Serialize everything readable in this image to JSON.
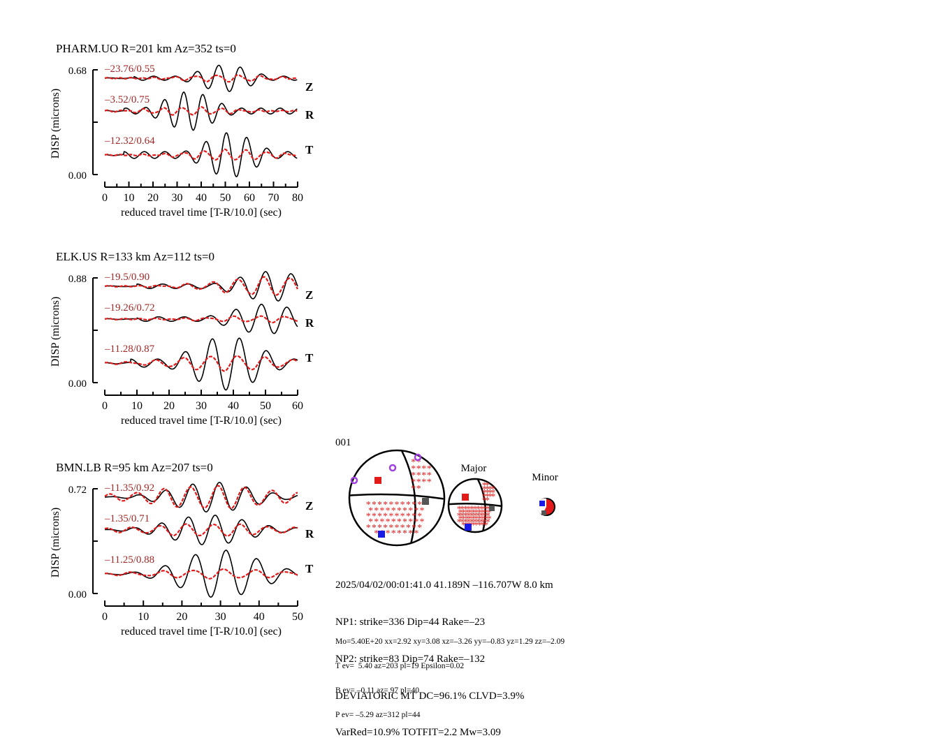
{
  "stations": [
    {
      "title": "PHARM.UO R=201 km Az=352 ts=0",
      "ylabel": "DISP (microns)",
      "ymax_label": "0.68",
      "ymin_label": "0.00",
      "xlabel": "reduced travel time [T-R/10.0] (sec)",
      "xticks": [
        "0",
        "10",
        "20",
        "30",
        "40",
        "50",
        "60",
        "70",
        "80"
      ],
      "xmax": 80,
      "components": [
        {
          "name": "Z",
          "fit": "–23.76/0.55",
          "obs_amp": 0.09,
          "syn_amp": 0.022,
          "obs_period": 9.0,
          "syn_period": 9.0,
          "onset": 12,
          "peak": 50
        },
        {
          "name": "R",
          "fit": "–3.52/0.75",
          "obs_amp": 0.13,
          "syn_amp": 0.025,
          "obs_period": 8.0,
          "syn_period": 8.0,
          "onset": 8,
          "peak": 35
        },
        {
          "name": "T",
          "fit": "–12.32/0.64",
          "obs_amp": 0.15,
          "syn_amp": 0.035,
          "obs_period": 8.5,
          "syn_period": 8.5,
          "onset": 8,
          "peak": 52
        }
      ]
    },
    {
      "title": "ELK.US R=133 km Az=112 ts=0",
      "ylabel": "DISP (microns)",
      "ymax_label": "0.88",
      "ymin_label": "0.00",
      "xlabel": "reduced travel time [T-R/10.0] (sec)",
      "xticks": [
        "0",
        "10",
        "20",
        "30",
        "40",
        "50",
        "60"
      ],
      "xmax": 60,
      "components": [
        {
          "name": "Z",
          "fit": "–19.5/0.90",
          "obs_amp": 0.1,
          "syn_amp": 0.06,
          "obs_period": 8.0,
          "syn_period": 8.0,
          "onset": 10,
          "peak": 52
        },
        {
          "name": "R",
          "fit": "–19.26/0.72",
          "obs_amp": 0.1,
          "syn_amp": 0.02,
          "obs_period": 8.0,
          "syn_period": 8.0,
          "onset": 10,
          "peak": 50
        },
        {
          "name": "T",
          "fit": "–11.28/0.87",
          "obs_amp": 0.18,
          "syn_amp": 0.05,
          "obs_period": 8.5,
          "syn_period": 8.5,
          "onset": 8,
          "peak": 38
        }
      ]
    },
    {
      "title": "BMN.LB R=95 km Az=207 ts=0",
      "ylabel": "DISP (microns)",
      "ymax_label": "0.72",
      "ymin_label": "0.00",
      "xlabel": "reduced travel time [T-R/10.0] (sec)",
      "xticks": [
        "0",
        "10",
        "20",
        "30",
        "40",
        "50"
      ],
      "xmax": 50,
      "components": [
        {
          "name": "Z",
          "fit": "–11.35/0.92",
          "obs_amp": 0.1,
          "syn_amp": 0.075,
          "obs_period": 7.0,
          "syn_period": 7.0,
          "onset": 8,
          "peak": 28
        },
        {
          "name": "R",
          "fit": "–1.35/0.71",
          "obs_amp": 0.1,
          "syn_amp": 0.04,
          "obs_period": 7.0,
          "syn_period": 7.0,
          "onset": 6,
          "peak": 27
        },
        {
          "name": "T",
          "fit": "–11.25/0.88",
          "obs_amp": 0.16,
          "syn_amp": 0.03,
          "obs_period": 8.0,
          "syn_period": 8.0,
          "onset": 10,
          "peak": 30
        }
      ]
    }
  ],
  "chart_data": [
    {
      "type": "line",
      "title": "PHARM.UO R=201 km Az=352 ts=0",
      "xlabel": "reduced travel time [T-R/10.0] (sec)",
      "ylabel": "DISP (microns)",
      "xlim": [
        0,
        80
      ],
      "ylim": [
        0.0,
        0.68
      ],
      "series": [
        {
          "name": "Z",
          "values": "–23.76/0.55"
        },
        {
          "name": "R",
          "values": "–3.52/0.75"
        },
        {
          "name": "T",
          "values": "–12.32/0.64"
        }
      ]
    },
    {
      "type": "line",
      "title": "ELK.US R=133 km Az=112 ts=0",
      "xlabel": "reduced travel time [T-R/10.0] (sec)",
      "ylabel": "DISP (microns)",
      "xlim": [
        0,
        60
      ],
      "ylim": [
        0.0,
        0.88
      ],
      "series": [
        {
          "name": "Z",
          "values": "–19.5/0.90"
        },
        {
          "name": "R",
          "values": "–19.26/0.72"
        },
        {
          "name": "T",
          "values": "–11.28/0.87"
        }
      ]
    },
    {
      "type": "line",
      "title": "BMN.LB R=95 km Az=207 ts=0",
      "xlabel": "reduced travel time [T-R/10.0] (sec)",
      "ylabel": "DISP (microns)",
      "xlim": [
        0,
        50
      ],
      "ylim": [
        0.0,
        0.72
      ],
      "series": [
        {
          "name": "Z",
          "values": "–11.35/0.92"
        },
        {
          "name": "R",
          "values": "–1.35/0.71"
        },
        {
          "name": "T",
          "values": "–11.25/0.88"
        }
      ]
    }
  ],
  "mechanism": {
    "event_id": "001",
    "major_label": "Major",
    "minor_label": "Minor"
  },
  "info_lines": [
    "2025/04/02/00:01:41.0 41.189N –116.707W 8.0 km",
    "NP1: strike=336 Dip=44 Rake=–23",
    "NP2: strike=83 Dip=74 Rake=–132",
    "DEVIATORIC MT DC=96.1% CLVD=3.9%",
    "VarRed=10.9% TOTFIT=2.2 Mw=3.09"
  ],
  "small_lines": [
    "Mo=5.40E+20 xx=2.92 xy=3.08 xz=–3.26 yy=–0.83 yz=1.29 zz=–2.09",
    "T ev=  5.40 az=203 pl=19 Epsilon=0.02",
    "B ev= –0.11 az= 97 pl=40",
    "P ev= –5.29 az=312 pl=44"
  ],
  "colors": {
    "observed": "#000000",
    "synthetic": "#e21a1a",
    "fit_text": "#a02828",
    "compression": "#e21a1a",
    "tension": "#1a1ae6",
    "null_axis": "#555555",
    "station": "#a040e0"
  }
}
